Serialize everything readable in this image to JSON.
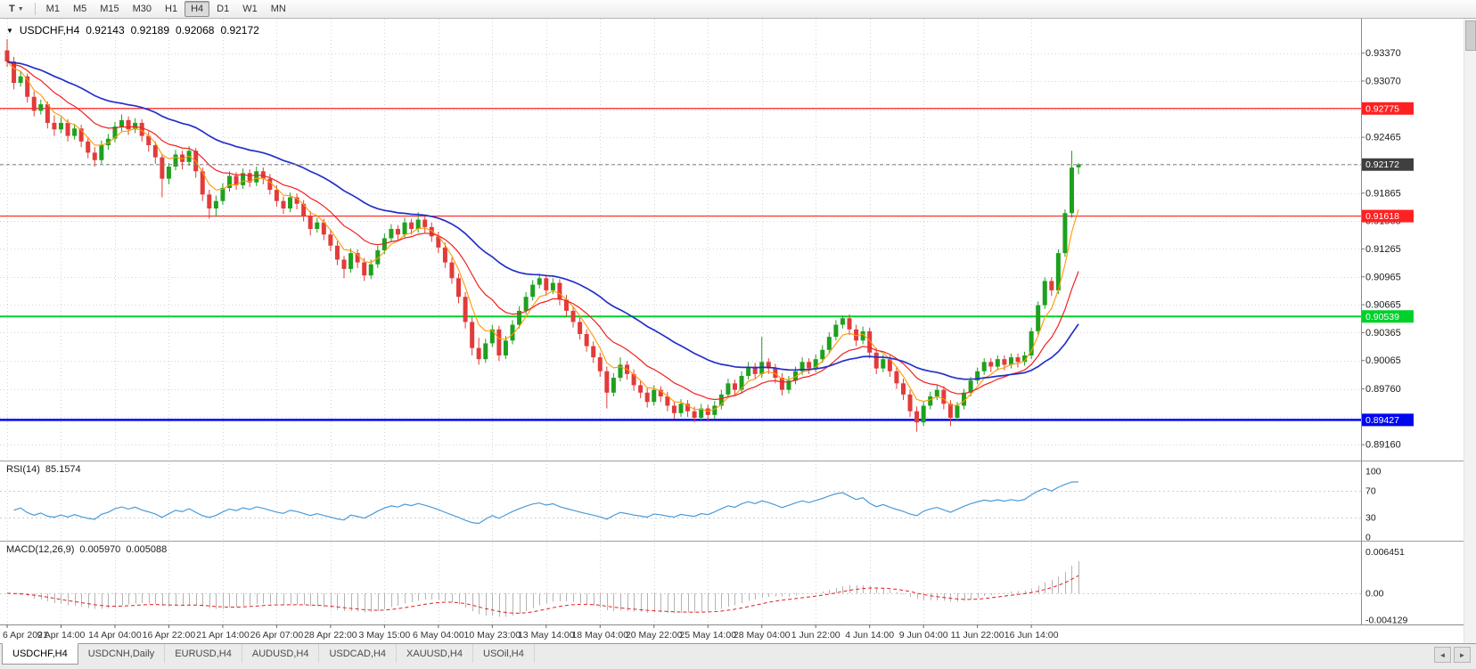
{
  "toolbar": {
    "templates_button_label": "T",
    "timeframes": [
      "M1",
      "M5",
      "M15",
      "M30",
      "H1",
      "H4",
      "D1",
      "W1",
      "MN"
    ],
    "active_timeframe": "H4"
  },
  "header": {
    "dropdown_icon": "▼",
    "symbol": "USDCHF,H4",
    "open": "0.92143",
    "high": "0.92189",
    "low": "0.92068",
    "close": "0.92172"
  },
  "tab_bar": {
    "tabs": [
      {
        "label": "USDCHF,H4",
        "active": true
      },
      {
        "label": "USDCNH,Daily",
        "active": false
      },
      {
        "label": "EURUSD,H4",
        "active": false
      },
      {
        "label": "AUDUSD,H4",
        "active": false
      },
      {
        "label": "USDCAD,H4",
        "active": false
      },
      {
        "label": "XAUUSD,H4",
        "active": false
      },
      {
        "label": "USOil,H4",
        "active": false
      }
    ],
    "scroll_left_icon": "◄",
    "scroll_right_icon": "►"
  },
  "colors": {
    "up": "#1ea11e",
    "down": "#e23b3b",
    "grid": "#d4d4d4",
    "ma_fast": "#ff9900",
    "ma_mid": "#f02020",
    "ma_slow": "#2430c8",
    "rsi": "#4a9bd8",
    "macd_hist": "#b4b4b4",
    "macd_signal": "#e02020",
    "axis_text": "#1a1a1a",
    "current_price_badge": "#3f3f3f"
  },
  "chart_data": {
    "type": "candlestick-ohlc",
    "symbol": "USDCHF",
    "timeframe": "H4",
    "price_range": {
      "max": 0.9374,
      "min": 0.8899
    },
    "price_gridlines": [
      0.9337,
      0.9307,
      0.92765,
      0.92465,
      0.92165,
      0.91865,
      0.91565,
      0.91265,
      0.90965,
      0.90665,
      0.90365,
      0.90065,
      0.8976,
      0.8946,
      0.8916
    ],
    "price_axis_labels": [
      "0.93370",
      "0.93070",
      "0.92465",
      "0.91865",
      "0.91565",
      "0.91265",
      "0.90965",
      "0.90665",
      "0.90365",
      "0.90065",
      "0.89760",
      "0.89160"
    ],
    "time_labels": [
      "6 Apr 2021",
      "9 Apr 14:00",
      "14 Apr 04:00",
      "16 Apr 22:00",
      "21 Apr 14:00",
      "26 Apr 07:00",
      "28 Apr 22:00",
      "3 May 15:00",
      "6 May 04:00",
      "10 May 23:00",
      "13 May 14:00",
      "18 May 04:00",
      "20 May 22:00",
      "25 May 14:00",
      "28 May 04:00",
      "1 Jun 22:00",
      "4 Jun 14:00",
      "9 Jun 04:00",
      "11 Jun 22:00",
      "16 Jun 14:00"
    ],
    "label_every_n_candles": 8,
    "levels": [
      {
        "value": 0.92775,
        "label": "0.92775",
        "color": "#ff2020",
        "width": 1.2
      },
      {
        "value": 0.91618,
        "label": "0.91618",
        "color": "#ff2020",
        "width": 1.2
      },
      {
        "value": 0.90539,
        "label": "0.90539",
        "color": "#00d02c",
        "width": 2
      },
      {
        "value": 0.89427,
        "label": "0.89427",
        "color": "#0008f0",
        "width": 2.4
      }
    ],
    "current_price": {
      "value": 0.92172,
      "label": "0.92172"
    },
    "moving_averages": [
      {
        "period": 5,
        "color_key": "ma_fast",
        "width": 1.1
      },
      {
        "period": 13,
        "color_key": "ma_mid",
        "width": 1.2
      },
      {
        "period": 34,
        "color_key": "ma_slow",
        "width": 1.7
      }
    ],
    "rsi": {
      "name": "RSI(14)",
      "value_label": "85.1574",
      "period": 14,
      "axis_labels": [
        "100",
        "70",
        "30",
        "0"
      ],
      "level_lines": [
        70,
        30
      ]
    },
    "macd": {
      "name": "MACD(12,26,9)",
      "macd_label": "0.005970",
      "signal_label": "0.005088",
      "fast_period": 12,
      "slow_period": 26,
      "signal_period": 9,
      "axis_labels": [
        "0.006451",
        "0.00",
        "-0.004129"
      ],
      "axis_values": [
        0.006451,
        0,
        -0.004129
      ]
    },
    "candles": [
      [
        0.934,
        0.9352,
        0.9322,
        0.9328
      ],
      [
        0.9328,
        0.9333,
        0.9298,
        0.9305
      ],
      [
        0.9305,
        0.9318,
        0.9301,
        0.9312
      ],
      [
        0.9312,
        0.9315,
        0.9284,
        0.929
      ],
      [
        0.929,
        0.9296,
        0.9269,
        0.9275
      ],
      [
        0.9275,
        0.9287,
        0.9271,
        0.9282
      ],
      [
        0.9282,
        0.9285,
        0.9256,
        0.9262
      ],
      [
        0.9262,
        0.927,
        0.9248,
        0.9255
      ],
      [
        0.9255,
        0.9268,
        0.9251,
        0.9262
      ],
      [
        0.9262,
        0.9266,
        0.9242,
        0.9248
      ],
      [
        0.9248,
        0.9261,
        0.9244,
        0.9256
      ],
      [
        0.9256,
        0.926,
        0.9236,
        0.9242
      ],
      [
        0.9242,
        0.9247,
        0.9224,
        0.923
      ],
      [
        0.923,
        0.9236,
        0.9215,
        0.9222
      ],
      [
        0.9222,
        0.9243,
        0.9218,
        0.9238
      ],
      [
        0.9238,
        0.925,
        0.9233,
        0.9245
      ],
      [
        0.9245,
        0.9263,
        0.9241,
        0.9258
      ],
      [
        0.9258,
        0.9271,
        0.9253,
        0.9265
      ],
      [
        0.9265,
        0.9269,
        0.9249,
        0.9255
      ],
      [
        0.9255,
        0.9267,
        0.9251,
        0.9262
      ],
      [
        0.9262,
        0.9266,
        0.9242,
        0.9248
      ],
      [
        0.9248,
        0.9253,
        0.9231,
        0.9238
      ],
      [
        0.9238,
        0.9242,
        0.9218,
        0.9225
      ],
      [
        0.9225,
        0.9229,
        0.9182,
        0.9202
      ],
      [
        0.9202,
        0.9219,
        0.9196,
        0.9215
      ],
      [
        0.9215,
        0.9233,
        0.9211,
        0.9228
      ],
      [
        0.9228,
        0.9232,
        0.9212,
        0.922
      ],
      [
        0.922,
        0.9237,
        0.9216,
        0.9232
      ],
      [
        0.9232,
        0.9235,
        0.9203,
        0.921
      ],
      [
        0.921,
        0.9214,
        0.9178,
        0.9185
      ],
      [
        0.9185,
        0.919,
        0.9159,
        0.917
      ],
      [
        0.917,
        0.9184,
        0.9161,
        0.9178
      ],
      [
        0.9178,
        0.9197,
        0.9174,
        0.9192
      ],
      [
        0.9192,
        0.921,
        0.9188,
        0.9205
      ],
      [
        0.9205,
        0.9209,
        0.919,
        0.9195
      ],
      [
        0.9195,
        0.9213,
        0.9191,
        0.9208
      ],
      [
        0.9208,
        0.9212,
        0.9193,
        0.9198
      ],
      [
        0.9198,
        0.9215,
        0.9194,
        0.921
      ],
      [
        0.921,
        0.9214,
        0.9196,
        0.9202
      ],
      [
        0.9202,
        0.9207,
        0.9185,
        0.919
      ],
      [
        0.919,
        0.9195,
        0.9172,
        0.9178
      ],
      [
        0.9178,
        0.9183,
        0.9164,
        0.917
      ],
      [
        0.917,
        0.9187,
        0.9166,
        0.9182
      ],
      [
        0.9182,
        0.9186,
        0.9169,
        0.9175
      ],
      [
        0.9175,
        0.9179,
        0.9156,
        0.9162
      ],
      [
        0.9162,
        0.9167,
        0.9141,
        0.9148
      ],
      [
        0.9148,
        0.916,
        0.9144,
        0.9155
      ],
      [
        0.9155,
        0.9159,
        0.9136,
        0.9142
      ],
      [
        0.9142,
        0.9147,
        0.9124,
        0.913
      ],
      [
        0.913,
        0.9135,
        0.9109,
        0.9115
      ],
      [
        0.9115,
        0.9119,
        0.9095,
        0.9105
      ],
      [
        0.9105,
        0.9127,
        0.9101,
        0.9122
      ],
      [
        0.9122,
        0.9126,
        0.9106,
        0.9112
      ],
      [
        0.9112,
        0.9117,
        0.9092,
        0.9098
      ],
      [
        0.9098,
        0.9115,
        0.9094,
        0.911
      ],
      [
        0.911,
        0.913,
        0.9106,
        0.9125
      ],
      [
        0.9125,
        0.9143,
        0.9121,
        0.9138
      ],
      [
        0.9138,
        0.9153,
        0.9134,
        0.9148
      ],
      [
        0.9148,
        0.9152,
        0.9136,
        0.9142
      ],
      [
        0.9142,
        0.916,
        0.9138,
        0.9155
      ],
      [
        0.9155,
        0.9159,
        0.9142,
        0.9148
      ],
      [
        0.9148,
        0.9166,
        0.9144,
        0.9158
      ],
      [
        0.9158,
        0.9163,
        0.9144,
        0.915
      ],
      [
        0.915,
        0.9155,
        0.9134,
        0.914
      ],
      [
        0.914,
        0.9145,
        0.9122,
        0.9128
      ],
      [
        0.9128,
        0.9133,
        0.9106,
        0.9112
      ],
      [
        0.9112,
        0.9117,
        0.9089,
        0.9095
      ],
      [
        0.9095,
        0.91,
        0.9068,
        0.9075
      ],
      [
        0.9075,
        0.908,
        0.9041,
        0.9048
      ],
      [
        0.9048,
        0.9053,
        0.9012,
        0.902
      ],
      [
        0.902,
        0.9031,
        0.9002,
        0.9008
      ],
      [
        0.9008,
        0.903,
        0.9004,
        0.9025
      ],
      [
        0.9025,
        0.9045,
        0.9021,
        0.904
      ],
      [
        0.904,
        0.9044,
        0.9006,
        0.9012
      ],
      [
        0.9012,
        0.9033,
        0.9008,
        0.9028
      ],
      [
        0.9028,
        0.905,
        0.9024,
        0.9045
      ],
      [
        0.9045,
        0.9065,
        0.9041,
        0.906
      ],
      [
        0.906,
        0.908,
        0.9056,
        0.9075
      ],
      [
        0.9075,
        0.9093,
        0.9071,
        0.9088
      ],
      [
        0.9088,
        0.91,
        0.9084,
        0.9095
      ],
      [
        0.9095,
        0.9099,
        0.9076,
        0.9082
      ],
      [
        0.9082,
        0.9095,
        0.9078,
        0.909
      ],
      [
        0.909,
        0.9094,
        0.9066,
        0.9072
      ],
      [
        0.9072,
        0.9077,
        0.9054,
        0.906
      ],
      [
        0.906,
        0.9065,
        0.9042,
        0.9048
      ],
      [
        0.9048,
        0.9053,
        0.9029,
        0.9035
      ],
      [
        0.9035,
        0.904,
        0.9016,
        0.9022
      ],
      [
        0.9022,
        0.9027,
        0.9004,
        0.901
      ],
      [
        0.901,
        0.9015,
        0.8989,
        0.8995
      ],
      [
        0.8995,
        0.9,
        0.8955,
        0.8972
      ],
      [
        0.8972,
        0.8993,
        0.8968,
        0.8988
      ],
      [
        0.8988,
        0.901,
        0.8984,
        0.9002
      ],
      [
        0.9002,
        0.9006,
        0.8986,
        0.8992
      ],
      [
        0.8992,
        0.8997,
        0.8974,
        0.898
      ],
      [
        0.898,
        0.8985,
        0.8966,
        0.8972
      ],
      [
        0.8972,
        0.8977,
        0.8956,
        0.8962
      ],
      [
        0.8962,
        0.898,
        0.8958,
        0.8975
      ],
      [
        0.8975,
        0.8979,
        0.8962,
        0.8968
      ],
      [
        0.8968,
        0.8973,
        0.8952,
        0.8958
      ],
      [
        0.8958,
        0.8963,
        0.8944,
        0.895
      ],
      [
        0.895,
        0.8965,
        0.8946,
        0.896
      ],
      [
        0.896,
        0.8964,
        0.8946,
        0.8952
      ],
      [
        0.8952,
        0.8957,
        0.894,
        0.8945
      ],
      [
        0.8945,
        0.896,
        0.8941,
        0.8955
      ],
      [
        0.8955,
        0.8959,
        0.8941,
        0.8948
      ],
      [
        0.8948,
        0.8963,
        0.8944,
        0.8958
      ],
      [
        0.8958,
        0.8975,
        0.8954,
        0.897
      ],
      [
        0.897,
        0.8987,
        0.8966,
        0.8982
      ],
      [
        0.8982,
        0.8986,
        0.8969,
        0.8975
      ],
      [
        0.8975,
        0.8995,
        0.8971,
        0.899
      ],
      [
        0.899,
        0.9005,
        0.8986,
        0.9
      ],
      [
        0.9,
        0.9004,
        0.8986,
        0.8992
      ],
      [
        0.8992,
        0.9032,
        0.8988,
        0.9005
      ],
      [
        0.9005,
        0.9009,
        0.8992,
        0.8998
      ],
      [
        0.8998,
        0.9003,
        0.8982,
        0.8988
      ],
      [
        0.8988,
        0.8993,
        0.8969,
        0.8975
      ],
      [
        0.8975,
        0.899,
        0.8971,
        0.8985
      ],
      [
        0.8985,
        0.9,
        0.8981,
        0.8995
      ],
      [
        0.8995,
        0.901,
        0.8991,
        0.9005
      ],
      [
        0.9005,
        0.9009,
        0.8992,
        0.8998
      ],
      [
        0.8998,
        0.9013,
        0.8994,
        0.9008
      ],
      [
        0.9008,
        0.9023,
        0.9004,
        0.9018
      ],
      [
        0.9018,
        0.9037,
        0.9014,
        0.9032
      ],
      [
        0.9032,
        0.905,
        0.9028,
        0.9045
      ],
      [
        0.9045,
        0.9055,
        0.9041,
        0.9052
      ],
      [
        0.9052,
        0.9056,
        0.9034,
        0.904
      ],
      [
        0.904,
        0.9045,
        0.9022,
        0.9028
      ],
      [
        0.9028,
        0.9043,
        0.9024,
        0.9038
      ],
      [
        0.9038,
        0.9042,
        0.9009,
        0.9015
      ],
      [
        0.9015,
        0.902,
        0.8992,
        0.8998
      ],
      [
        0.8998,
        0.9013,
        0.8994,
        0.9008
      ],
      [
        0.9008,
        0.9012,
        0.8989,
        0.8995
      ],
      [
        0.8995,
        0.9,
        0.8976,
        0.8982
      ],
      [
        0.8982,
        0.8987,
        0.8964,
        0.897
      ],
      [
        0.897,
        0.8975,
        0.8946,
        0.8952
      ],
      [
        0.8952,
        0.8957,
        0.893,
        0.894
      ],
      [
        0.894,
        0.8962,
        0.8936,
        0.8958
      ],
      [
        0.8958,
        0.8973,
        0.8954,
        0.8968
      ],
      [
        0.8968,
        0.898,
        0.8964,
        0.8975
      ],
      [
        0.8975,
        0.8979,
        0.8954,
        0.896
      ],
      [
        0.896,
        0.8964,
        0.8936,
        0.8945
      ],
      [
        0.8945,
        0.8962,
        0.8941,
        0.8958
      ],
      [
        0.8958,
        0.8976,
        0.8954,
        0.8972
      ],
      [
        0.8972,
        0.8989,
        0.8968,
        0.8985
      ],
      [
        0.8985,
        0.8999,
        0.8981,
        0.8995
      ],
      [
        0.8995,
        0.9009,
        0.8991,
        0.9005
      ],
      [
        0.9005,
        0.9009,
        0.8994,
        0.9
      ],
      [
        0.9,
        0.9012,
        0.8996,
        0.9008
      ],
      [
        0.9008,
        0.9012,
        0.8996,
        0.9002
      ],
      [
        0.9002,
        0.9014,
        0.8998,
        0.901
      ],
      [
        0.901,
        0.9014,
        0.8999,
        0.9005
      ],
      [
        0.9005,
        0.9016,
        0.9001,
        0.9012
      ],
      [
        0.9012,
        0.9042,
        0.9008,
        0.9038
      ],
      [
        0.9038,
        0.907,
        0.9034,
        0.9066
      ],
      [
        0.9066,
        0.9096,
        0.9062,
        0.9092
      ],
      [
        0.9092,
        0.9096,
        0.9076,
        0.9082
      ],
      [
        0.9082,
        0.9126,
        0.9078,
        0.9122
      ],
      [
        0.9122,
        0.9169,
        0.9118,
        0.9165
      ],
      [
        0.9165,
        0.9232,
        0.916,
        0.9214
      ],
      [
        0.92143,
        0.92189,
        0.92068,
        0.92172
      ]
    ]
  }
}
